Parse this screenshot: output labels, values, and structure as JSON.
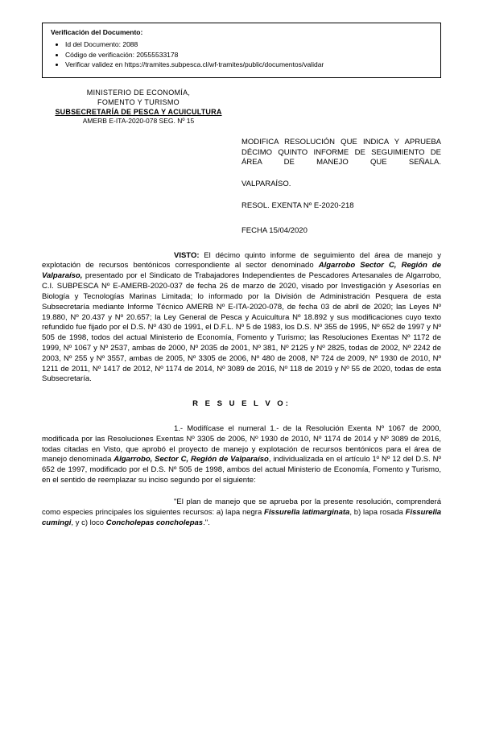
{
  "verification": {
    "title": "Verificación del Documento:",
    "items": [
      "Id del Documento: 2088",
      "Código de verificación: 20555533178",
      "Verificar validez en https://tramites.subpesca.cl/wf-tramites/public/documentos/validar"
    ]
  },
  "ministry": {
    "line1": "MINISTERIO DE ECONOMÍA,",
    "line2": "FOMENTO Y TURISMO",
    "line3": "SUBSECRETARÍA DE PESCA Y ACUICULTURA",
    "line4": "AMERB E-ITA-2020-078 SEG. Nº 15"
  },
  "header_right": {
    "subject": "MODIFICA RESOLUCIÓN QUE INDICA Y APRUEBA DÉCIMO QUINTO INFORME DE SEGUIMIENTO DE ÁREA DE MANEJO QUE SEÑALA.",
    "city": "VALPARAÍSO.",
    "resol": "RESOL. EXENTA Nº E-2020-218",
    "fecha": "FECHA 15/04/2020"
  },
  "visto": {
    "label": "VISTO:",
    "text_a": " El décimo quinto informe de seguimiento del área de manejo y explotación de recursos bentónicos correspondiente al sector denominado ",
    "sector": "Algarrobo Sector C, Región de Valparaíso,",
    "text_b": " presentado por el Sindicato de Trabajadores Independientes de Pescadores Artesanales de Algarrobo, C.I. SUBPESCA Nº E-AMERB-2020-037 de fecha 26 de marzo de 2020, visado por Investigación y Asesorías en Biología y Tecnologías Marinas Limitada; lo informado por la División de Administración Pesquera de esta Subsecretaría mediante Informe Técnico AMERB Nº E-ITA-2020-078, de fecha 03 de abril de 2020; las Leyes Nº 19.880, Nº 20.437 y Nº 20.657; la Ley General de Pesca y Acuicultura Nº 18.892 y sus modificaciones cuyo texto refundido fue fijado por el D.S. Nº 430 de 1991, el D.F.L. Nº 5 de 1983, los D.S. Nº 355 de 1995, Nº 652 de 1997 y Nº 505 de 1998, todos del actual Ministerio de Economía, Fomento y Turismo; las Resoluciones Exentas Nº 1172 de 1999, Nº 1067 y Nº 2537, ambas de 2000, Nº 2035 de 2001, Nº 381, Nº 2125 y Nº 2825, todas de 2002, Nº 2242 de 2003, Nº 255 y Nº 3557, ambas de 2005, Nº 3305 de 2006, Nº 480 de 2008, Nº 724 de 2009, Nº 1930 de 2010, Nº 1211 de 2011, Nº 1417 de 2012, Nº 1174 de 2014, Nº 3089 de 2016, Nº 118 de 2019 y Nº 55 de 2020, todas de esta Subsecretaría."
  },
  "resuelvo_label": "R E S U E L V O:",
  "para1": {
    "text_a": "1.- Modifícase el numeral 1.- de la Resolución Exenta Nº 1067 de 2000, modificada por las Resoluciones Exentas Nº 3305 de 2006, Nº 1930 de 2010, Nº 1174 de 2014 y Nº 3089 de 2016, todas citadas en Visto, que aprobó el proyecto de manejo y explotación de recursos bentónicos para el área de manejo denominada ",
    "sector": "Algarrobo, Sector C, Región de Valparaíso",
    "text_b": ", individualizada en el artículo 1º Nº 12 del D.S. Nº 652 de 1997, modificado por el D.S. Nº 505 de 1998, ambos del actual Ministerio de Economía, Fomento y Turismo, en el sentido de reemplazar su inciso segundo por el siguiente:"
  },
  "para2": {
    "text_a": "\"El plan de manejo que se aprueba por la presente resolución, comprenderá como especies principales los siguientes recursos: a) lapa negra ",
    "sp1": "Fissurella latimarginata",
    "text_b": ", b) lapa rosada ",
    "sp2": "Fissurella cumingi",
    "text_c": ", y c) loco ",
    "sp3": "Concholepas concholepas",
    "text_d": ".\"."
  }
}
